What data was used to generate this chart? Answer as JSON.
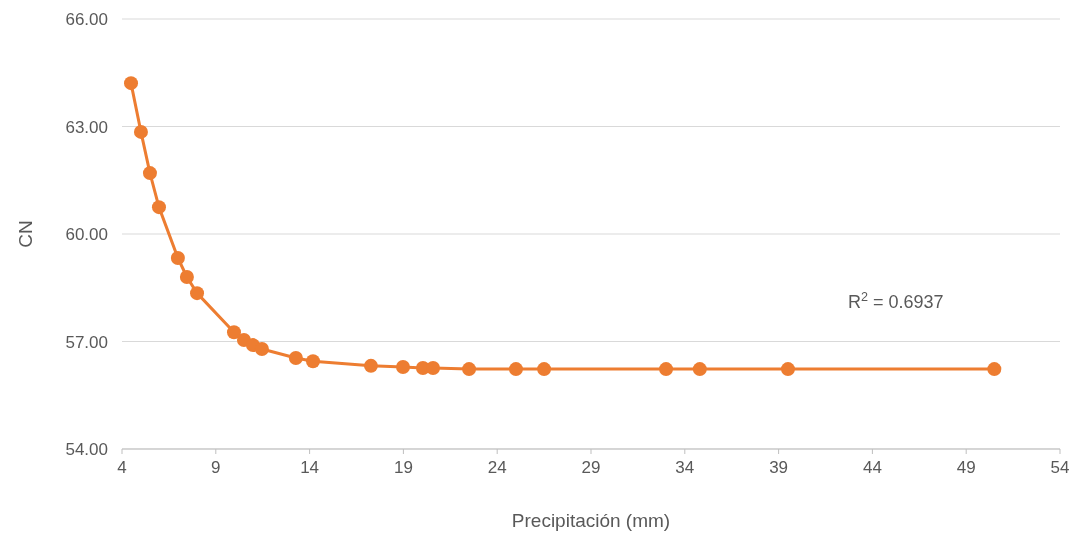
{
  "chart_data": {
    "type": "line",
    "xlabel": "Precipitación (mm)",
    "ylabel": "CN",
    "xlim": [
      4,
      54
    ],
    "xticks": [
      4,
      9,
      14,
      19,
      24,
      29,
      34,
      39,
      44,
      49,
      54
    ],
    "ylim": [
      54,
      66
    ],
    "yticks": [
      {
        "value": 54,
        "label": "54.00"
      },
      {
        "value": 57,
        "label": "57.00"
      },
      {
        "value": 60,
        "label": "60.00"
      },
      {
        "value": 63,
        "label": "63.00"
      },
      {
        "value": 66,
        "label": "66.00"
      }
    ],
    "grid": "y",
    "marker": "circle",
    "line_style": "solid",
    "annotations": [
      "R$^{2}$ = 0.6937"
    ],
    "series": [
      {
        "color": "#ed7d31",
        "x": [
          4.48,
          5.01,
          5.49,
          5.97,
          6.98,
          7.46,
          8.0,
          9.97,
          10.5,
          10.98,
          11.46,
          13.27,
          14.18,
          17.27,
          18.98,
          20.04,
          20.58,
          22.5,
          25.0,
          26.5,
          33.0,
          34.8,
          39.5,
          50.5
        ],
        "values": [
          64.21,
          62.85,
          61.7,
          60.75,
          59.33,
          58.8,
          58.35,
          57.26,
          57.04,
          56.9,
          56.79,
          56.54,
          56.45,
          56.32,
          56.29,
          56.26,
          56.26,
          56.23,
          56.23,
          56.23,
          56.23,
          56.23,
          56.23,
          56.23
        ]
      }
    ]
  }
}
